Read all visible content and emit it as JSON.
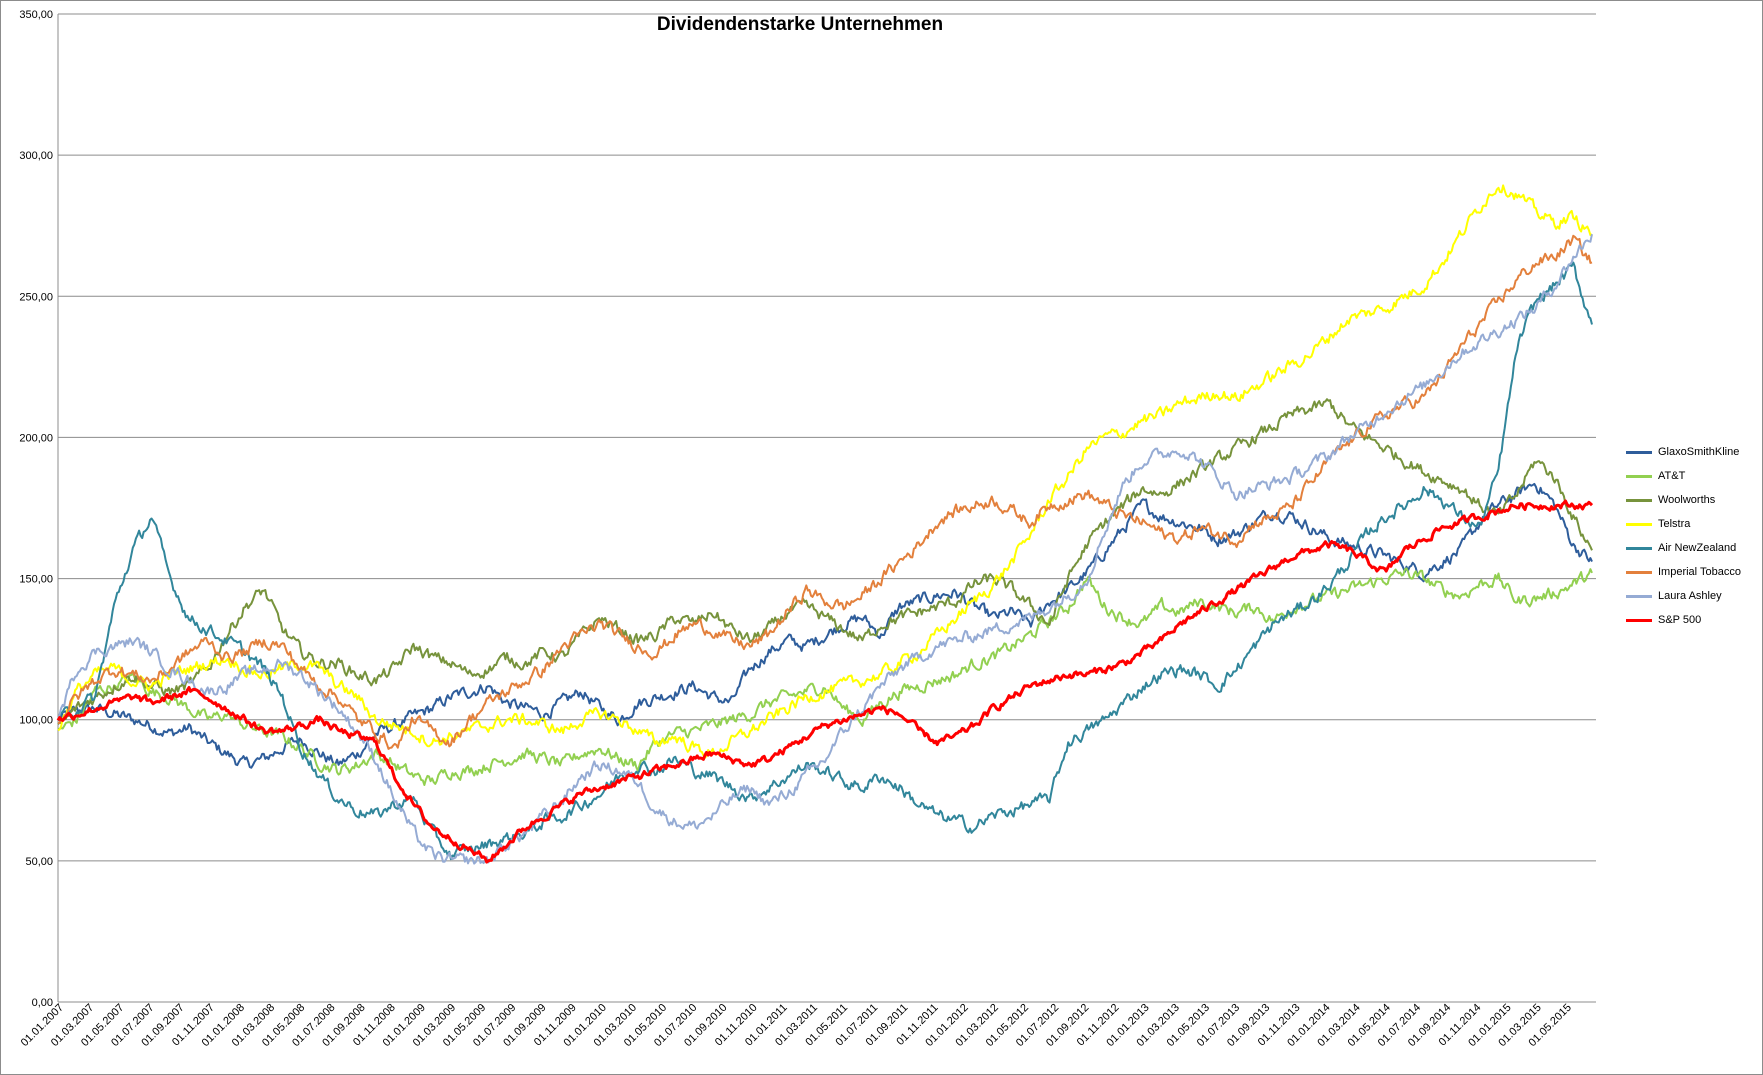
{
  "chart_data": {
    "type": "line",
    "title": "Dividendenstarke Unternehmen",
    "xlabel": "",
    "ylabel": "",
    "ylim": [
      0,
      350
    ],
    "y_ticks": [
      "0,00",
      "50,00",
      "100,00",
      "150,00",
      "200,00",
      "250,00",
      "300,00",
      "350,00"
    ],
    "x_ticks": [
      "01.01.2007",
      "01.03.2007",
      "01.05.2007",
      "01.07.2007",
      "01.09.2007",
      "01.11.2007",
      "01.01.2008",
      "01.03.2008",
      "01.05.2008",
      "01.07.2008",
      "01.09.2008",
      "01.11.2008",
      "01.01.2009",
      "01.03.2009",
      "01.05.2009",
      "01.07.2009",
      "01.09.2009",
      "01.11.2009",
      "01.01.2010",
      "01.03.2010",
      "01.05.2010",
      "01.07.2010",
      "01.09.2010",
      "01.11.2010",
      "01.01.2011",
      "01.03.2011",
      "01.05.2011",
      "01.07.2011",
      "01.09.2011",
      "01.11.2011",
      "01.01.2012",
      "01.03.2012",
      "01.05.2012",
      "01.07.2012",
      "01.09.2012",
      "01.11.2012",
      "01.01.2013",
      "01.03.2013",
      "01.05.2013",
      "01.07.2013",
      "01.09.2013",
      "01.11.2013",
      "01.01.2014",
      "01.03.2014",
      "01.05.2014",
      "01.07.2014",
      "01.09.2014",
      "01.11.2014",
      "01.01.2015",
      "01.03.2015",
      "01.05.2015"
    ],
    "grid": true,
    "legend_position": "right",
    "series": [
      {
        "name": "GlaxoSmithKline",
        "color": "#2e5d9b",
        "values": [
          100,
          103,
          104,
          102,
          100,
          98,
          95,
          97,
          92,
          88,
          84,
          86,
          90,
          93,
          88,
          84,
          88,
          95,
          98,
          101,
          104,
          108,
          110,
          112,
          106,
          104,
          102,
          106,
          110,
          104,
          100,
          106,
          108,
          110,
          112,
          108,
          106,
          118,
          124,
          128,
          126,
          130,
          134,
          136,
          130,
          140,
          142,
          144,
          145,
          140,
          136,
          138,
          134,
          142,
          146,
          152,
          160,
          168,
          176,
          172,
          170,
          168,
          164,
          166,
          170,
          174,
          172,
          168,
          164,
          162,
          160,
          158,
          155,
          152,
          156,
          160,
          170,
          176,
          180,
          184,
          176,
          162,
          156
        ]
      },
      {
        "name": "AT&T",
        "color": "#92d050",
        "values": [
          96,
          100,
          110,
          112,
          115,
          110,
          108,
          104,
          100,
          102,
          98,
          96,
          94,
          90,
          85,
          82,
          84,
          88,
          84,
          80,
          78,
          82,
          82,
          84,
          86,
          88,
          86,
          84,
          88,
          90,
          86,
          84,
          92,
          95,
          96,
          98,
          100,
          102,
          106,
          108,
          110,
          112,
          104,
          100,
          106,
          110,
          112,
          114,
          116,
          120,
          122,
          126,
          130,
          135,
          140,
          150,
          140,
          136,
          134,
          140,
          138,
          142,
          140,
          138,
          140,
          135,
          140,
          142,
          144,
          146,
          148,
          150,
          152,
          150,
          146,
          144,
          148,
          150,
          142,
          143,
          145,
          148,
          152
        ]
      },
      {
        "name": "Woolworths",
        "color": "#77933c",
        "values": [
          97,
          104,
          108,
          112,
          116,
          112,
          110,
          112,
          118,
          130,
          140,
          146,
          132,
          124,
          120,
          120,
          116,
          114,
          118,
          126,
          122,
          120,
          116,
          118,
          122,
          120,
          124,
          122,
          130,
          136,
          132,
          128,
          130,
          136,
          134,
          138,
          132,
          128,
          132,
          138,
          140,
          136,
          132,
          128,
          134,
          136,
          138,
          140,
          142,
          148,
          150,
          146,
          140,
          134,
          150,
          162,
          170,
          176,
          182,
          180,
          184,
          188,
          192,
          196,
          200,
          204,
          208,
          210,
          212,
          204,
          200,
          196,
          192,
          188,
          185,
          182,
          176,
          172,
          180,
          192,
          186,
          172,
          160
        ]
      },
      {
        "name": "Telstra",
        "color": "#ffff00",
        "values": [
          97,
          110,
          116,
          118,
          114,
          112,
          116,
          118,
          120,
          122,
          118,
          116,
          118,
          120,
          118,
          112,
          108,
          100,
          98,
          96,
          92,
          94,
          96,
          98,
          100,
          100,
          98,
          96,
          100,
          102,
          100,
          96,
          92,
          94,
          90,
          88,
          92,
          96,
          100,
          104,
          108,
          110,
          112,
          114,
          116,
          120,
          124,
          130,
          136,
          142,
          148,
          156,
          166,
          178,
          186,
          196,
          200,
          202,
          206,
          208,
          212,
          214,
          216,
          214,
          218,
          222,
          226,
          230,
          236,
          242,
          244,
          246,
          250,
          254,
          262,
          272,
          282,
          290,
          286,
          280,
          276,
          278,
          272
        ]
      },
      {
        "name": "Air NewZealand",
        "color": "#31869b",
        "values": [
          100,
          104,
          108,
          140,
          160,
          172,
          150,
          136,
          132,
          128,
          124,
          118,
          108,
          90,
          80,
          72,
          68,
          66,
          70,
          72,
          60,
          52,
          54,
          56,
          58,
          60,
          64,
          66,
          70,
          74,
          80,
          84,
          82,
          86,
          82,
          80,
          76,
          72,
          76,
          80,
          84,
          82,
          78,
          76,
          80,
          76,
          70,
          66,
          64,
          62,
          66,
          68,
          70,
          72,
          92,
          96,
          100,
          106,
          112,
          116,
          118,
          116,
          112,
          118,
          126,
          134,
          138,
          142,
          148,
          156,
          166,
          172,
          176,
          182,
          178,
          172,
          168,
          188,
          232,
          248,
          254,
          260,
          240
        ]
      },
      {
        "name": "Imperial Tobacco",
        "color": "#e3803c",
        "values": [
          100,
          108,
          114,
          118,
          116,
          114,
          118,
          124,
          128,
          122,
          124,
          128,
          126,
          118,
          112,
          108,
          100,
          96,
          90,
          100,
          96,
          92,
          100,
          106,
          110,
          114,
          118,
          126,
          130,
          134,
          130,
          126,
          124,
          130,
          134,
          132,
          128,
          126,
          130,
          138,
          146,
          142,
          140,
          144,
          150,
          156,
          162,
          170,
          174,
          176,
          178,
          174,
          170,
          176,
          178,
          180,
          176,
          172,
          170,
          166,
          164,
          168,
          166,
          164,
          170,
          172,
          176,
          184,
          192,
          198,
          204,
          208,
          212,
          214,
          222,
          232,
          240,
          248,
          256,
          262,
          264,
          270,
          262
        ]
      },
      {
        "name": "Laura Ashley",
        "color": "#95abd4",
        "values": [
          100,
          118,
          124,
          126,
          128,
          124,
          118,
          114,
          110,
          112,
          116,
          118,
          120,
          116,
          110,
          104,
          96,
          86,
          72,
          60,
          52,
          50,
          50,
          50,
          56,
          60,
          66,
          72,
          80,
          84,
          82,
          78,
          68,
          64,
          62,
          66,
          72,
          76,
          70,
          74,
          80,
          86,
          96,
          104,
          112,
          118,
          122,
          126,
          128,
          130,
          132,
          134,
          136,
          140,
          144,
          150,
          168,
          184,
          192,
          194,
          196,
          192,
          186,
          180,
          182,
          184,
          186,
          190,
          194,
          200,
          204,
          210,
          214,
          218,
          224,
          230,
          234,
          238,
          242,
          246,
          254,
          264,
          272
        ]
      },
      {
        "name": "S&P 500",
        "color": "#ff0000",
        "values": [
          100,
          102,
          104,
          106,
          108,
          106,
          108,
          110,
          108,
          104,
          100,
          96,
          96,
          98,
          100,
          96,
          94,
          92,
          80,
          70,
          62,
          58,
          54,
          50,
          56,
          62,
          66,
          70,
          74,
          76,
          78,
          80,
          82,
          84,
          86,
          88,
          86,
          84,
          86,
          90,
          94,
          98,
          100,
          102,
          104,
          102,
          96,
          92,
          94,
          98,
          104,
          108,
          112,
          114,
          116,
          116,
          118,
          120,
          124,
          128,
          134,
          138,
          142,
          146,
          150,
          154,
          158,
          160,
          162,
          160,
          156,
          152,
          160,
          164,
          168,
          170,
          172,
          174,
          176,
          176,
          176,
          176,
          176
        ]
      }
    ]
  }
}
